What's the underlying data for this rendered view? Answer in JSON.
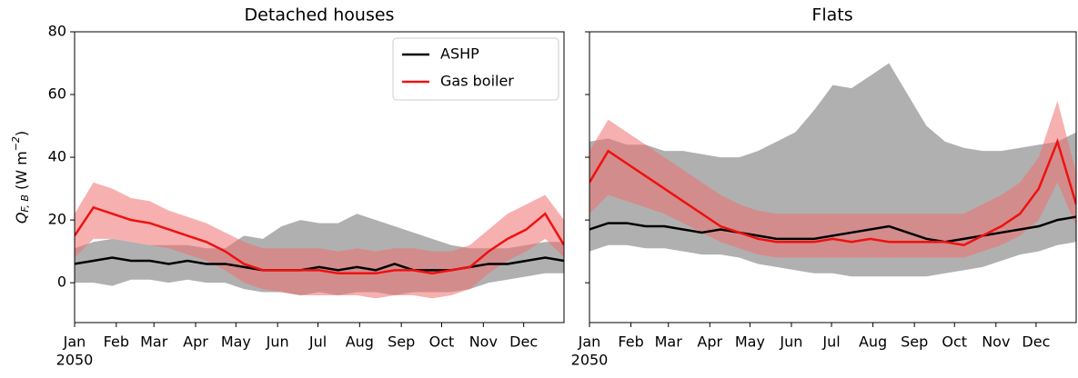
{
  "chart_data": [
    {
      "type": "line",
      "title": "Detached houses",
      "y_label": {
        "main": "Q",
        "sub": "F, B",
        "unit": " (W m",
        "sup": "−2",
        "end": ")"
      },
      "x": [
        0,
        14,
        28,
        42,
        56,
        70,
        84,
        98,
        112,
        126,
        140,
        154,
        168,
        182,
        196,
        210,
        224,
        238,
        252,
        266,
        280,
        294,
        308,
        322,
        336,
        350,
        364
      ],
      "xlim": [
        0,
        364
      ],
      "xticks": [
        {
          "value": 0,
          "label": "Jan"
        },
        {
          "value": 31,
          "label": "Feb"
        },
        {
          "value": 59,
          "label": "Mar"
        },
        {
          "value": 90,
          "label": "Apr"
        },
        {
          "value": 120,
          "label": "May"
        },
        {
          "value": 151,
          "label": "Jun"
        },
        {
          "value": 181,
          "label": "Jul"
        },
        {
          "value": 212,
          "label": "Aug"
        },
        {
          "value": 243,
          "label": "Sep"
        },
        {
          "value": 273,
          "label": "Oct"
        },
        {
          "value": 304,
          "label": "Nov"
        },
        {
          "value": 334,
          "label": "Dec"
        }
      ],
      "year_label": "2050",
      "ylim": [
        -12.7,
        80
      ],
      "yticks": [
        0,
        20,
        40,
        60,
        80
      ],
      "show_ytick_labels": true,
      "legend": "upper right",
      "series": [
        {
          "name": "ASHP",
          "color": "#000000",
          "band_color": "#b0b0b0",
          "values": [
            6,
            7,
            8,
            7,
            7,
            6,
            7,
            6,
            6,
            5,
            4,
            4,
            4,
            5,
            4,
            5,
            4,
            6,
            4,
            4,
            4,
            5,
            6,
            6,
            7,
            8,
            7
          ],
          "low": [
            0,
            0,
            -1,
            1,
            1,
            0,
            1,
            0,
            0,
            -2,
            -3,
            -3,
            -4,
            -3,
            -4,
            -3,
            -3,
            -4,
            -3,
            -3,
            -3,
            -2,
            0,
            1,
            2,
            3,
            3
          ],
          "high": [
            11,
            13,
            14,
            13,
            12,
            12,
            12,
            11,
            11,
            15,
            14,
            18,
            20,
            19,
            19,
            22,
            20,
            18,
            16,
            14,
            12,
            11,
            11,
            11,
            12,
            13,
            13
          ]
        },
        {
          "name": "Gas boiler",
          "color": "#ee1111",
          "band_color": "#f07070",
          "values": [
            15,
            24,
            22,
            20,
            19,
            17,
            15,
            13,
            10,
            6,
            4,
            4,
            4,
            4,
            3,
            3,
            3,
            4,
            4,
            3,
            4,
            5,
            10,
            14,
            17,
            22,
            12
          ],
          "low": [
            8,
            14,
            14,
            13,
            12,
            11,
            9,
            7,
            4,
            0,
            -2,
            -3,
            -4,
            -4,
            -4,
            -4,
            -5,
            -4,
            -4,
            -5,
            -4,
            -2,
            3,
            7,
            10,
            14,
            8
          ],
          "high": [
            22,
            32,
            30,
            27,
            26,
            23,
            21,
            19,
            16,
            13,
            11,
            11,
            11,
            11,
            10,
            11,
            10,
            11,
            11,
            10,
            10,
            12,
            17,
            22,
            25,
            28,
            20
          ]
        }
      ]
    },
    {
      "type": "line",
      "title": "Flats",
      "x": [
        0,
        14,
        28,
        42,
        56,
        70,
        84,
        98,
        112,
        126,
        140,
        154,
        168,
        182,
        196,
        210,
        224,
        238,
        252,
        266,
        280,
        294,
        308,
        322,
        336,
        350,
        364
      ],
      "xlim": [
        0,
        364
      ],
      "xticks": [
        {
          "value": 0,
          "label": "Jan"
        },
        {
          "value": 31,
          "label": "Feb"
        },
        {
          "value": 59,
          "label": "Mar"
        },
        {
          "value": 90,
          "label": "Apr"
        },
        {
          "value": 120,
          "label": "May"
        },
        {
          "value": 151,
          "label": "Jun"
        },
        {
          "value": 181,
          "label": "Jul"
        },
        {
          "value": 212,
          "label": "Aug"
        },
        {
          "value": 243,
          "label": "Sep"
        },
        {
          "value": 273,
          "label": "Oct"
        },
        {
          "value": 304,
          "label": "Nov"
        },
        {
          "value": 334,
          "label": "Dec"
        }
      ],
      "year_label": "2050",
      "ylim": [
        -12.7,
        80
      ],
      "yticks": [
        0,
        20,
        40,
        60,
        80
      ],
      "show_ytick_labels": false,
      "series": [
        {
          "color": "#000000",
          "band_color": "#b0b0b0",
          "values": [
            17,
            19,
            19,
            18,
            18,
            17,
            16,
            17,
            16,
            15,
            14,
            14,
            14,
            15,
            16,
            17,
            18,
            16,
            14,
            13,
            14,
            15,
            16,
            17,
            18,
            20,
            21
          ],
          "low": [
            10,
            12,
            12,
            11,
            11,
            10,
            9,
            9,
            8,
            6,
            5,
            4,
            3,
            3,
            2,
            2,
            2,
            2,
            2,
            3,
            4,
            5,
            7,
            9,
            10,
            12,
            13
          ],
          "high": [
            45,
            46,
            44,
            44,
            42,
            42,
            41,
            40,
            40,
            42,
            45,
            48,
            55,
            63,
            62,
            66,
            70,
            60,
            50,
            45,
            43,
            42,
            42,
            43,
            44,
            45,
            48
          ]
        },
        {
          "color": "#ee1111",
          "band_color": "#f07070",
          "values": [
            32,
            42,
            38,
            34,
            30,
            26,
            22,
            18,
            16,
            14,
            13,
            13,
            13,
            14,
            13,
            14,
            13,
            13,
            13,
            13,
            12,
            15,
            18,
            22,
            30,
            45,
            25
          ],
          "low": [
            22,
            28,
            26,
            24,
            22,
            19,
            16,
            13,
            11,
            9,
            8,
            8,
            8,
            8,
            8,
            8,
            8,
            8,
            8,
            8,
            8,
            10,
            12,
            15,
            20,
            32,
            18
          ],
          "high": [
            42,
            52,
            48,
            44,
            40,
            36,
            32,
            28,
            25,
            23,
            22,
            22,
            22,
            22,
            22,
            22,
            22,
            22,
            22,
            22,
            22,
            25,
            28,
            32,
            40,
            58,
            35
          ]
        }
      ]
    }
  ]
}
